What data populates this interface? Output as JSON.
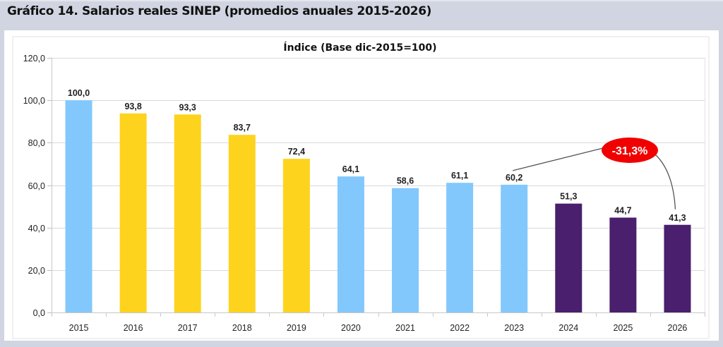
{
  "figure": {
    "title": "Gráfico 14.  Salarios reales SINEP (promedios anuales 2015-2026)"
  },
  "colors": {
    "light_blue": "#82c8fd",
    "yellow": "#fdd31e",
    "purple": "#4a1f6d",
    "badge_red": "#f00000",
    "grid": "#d9d9d9"
  },
  "chart_data": {
    "type": "bar",
    "title": "Índice (Base dic-2015=100)",
    "xlabel": "",
    "ylabel": "",
    "ylim": [
      0,
      120
    ],
    "yticks": [
      0,
      20,
      40,
      60,
      80,
      100,
      120
    ],
    "ytick_labels": [
      "0,0",
      "20,0",
      "40,0",
      "60,0",
      "80,0",
      "100,0",
      "120,0"
    ],
    "grid": true,
    "legend": "none",
    "categories": [
      "2015",
      "2016",
      "2017",
      "2018",
      "2019",
      "2020",
      "2021",
      "2022",
      "2023",
      "2024",
      "2025",
      "2026"
    ],
    "values": [
      100.0,
      93.8,
      93.3,
      83.7,
      72.4,
      64.1,
      58.6,
      61.1,
      60.2,
      51.3,
      44.7,
      41.3
    ],
    "value_labels": [
      "100,0",
      "93,8",
      "93,3",
      "83,7",
      "72,4",
      "64,1",
      "58,6",
      "61,1",
      "60,2",
      "51,3",
      "44,7",
      "41,3"
    ],
    "bar_colors": [
      "light_blue",
      "yellow",
      "yellow",
      "yellow",
      "yellow",
      "light_blue",
      "light_blue",
      "light_blue",
      "light_blue",
      "purple",
      "purple",
      "purple"
    ],
    "annotations": [
      {
        "text": "-31,3%",
        "shape": "red-ellipse",
        "connects": [
          "2023",
          "2026"
        ]
      }
    ]
  }
}
